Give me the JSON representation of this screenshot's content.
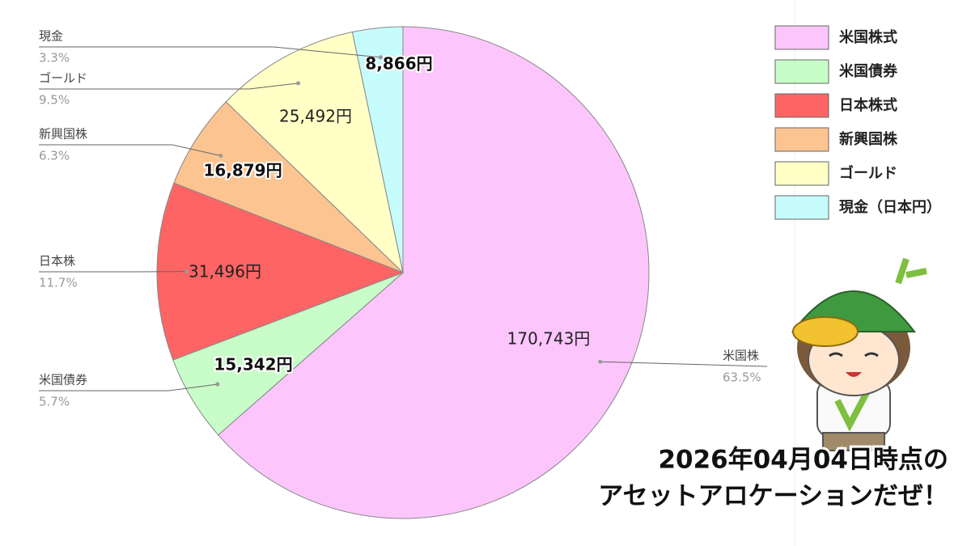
{
  "chart_data": {
    "type": "pie",
    "categories": [
      "米国株",
      "米国債券",
      "日本株",
      "新興国株",
      "ゴールド",
      "現金"
    ],
    "values": [
      170743,
      15342,
      31496,
      16879,
      25492,
      8866
    ],
    "value_labels": [
      "170,743円",
      "15,342円",
      "31,496円",
      "16,879円",
      "25,492円",
      "8,866円"
    ],
    "percents": [
      63.5,
      5.7,
      11.7,
      6.3,
      9.5,
      3.3
    ],
    "percent_labels": [
      "63.5%",
      "5.7%",
      "11.7%",
      "6.3%",
      "9.5%",
      "3.3%"
    ],
    "colors": [
      "#fcc6fc",
      "#c8fcc8",
      "#ff6464",
      "#fcc491",
      "#ffffc6",
      "#c6fcfc"
    ],
    "legend_labels": [
      "米国株式",
      "米国債券",
      "日本株式",
      "新興国株",
      "ゴールド",
      "現金（日本円）"
    ],
    "annotations": [
      "2026年04月04日時点の",
      "アセットアロケーションだぜ！"
    ]
  }
}
